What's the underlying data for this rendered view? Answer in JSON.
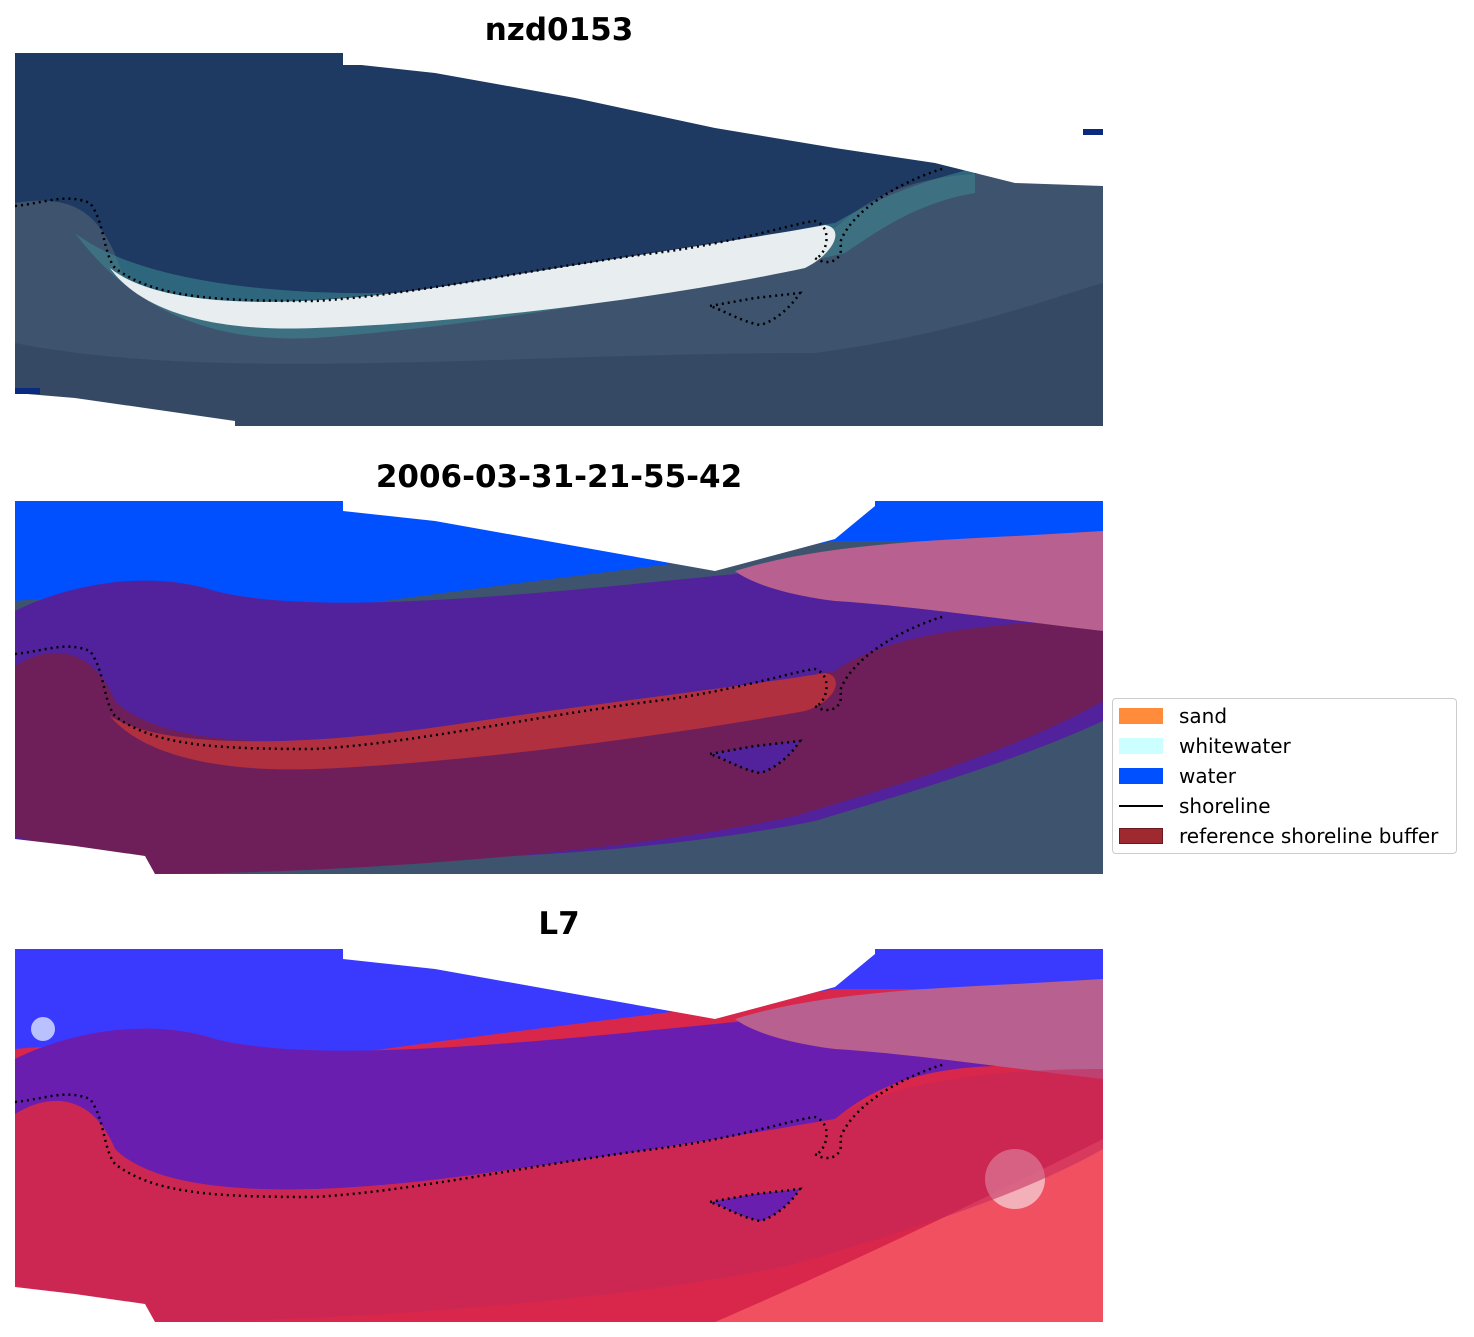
{
  "panels": [
    {
      "title": "nzd0153",
      "mode": "rgb"
    },
    {
      "title": "2006-03-31-21-55-42",
      "mode": "classified"
    },
    {
      "title": "L7",
      "mode": "mndwi"
    }
  ],
  "legend": {
    "items": [
      {
        "label": "sand",
        "type": "patch",
        "color": "#ff8c3a"
      },
      {
        "label": "whitewater",
        "type": "patch",
        "color": "#ccffff"
      },
      {
        "label": "water",
        "type": "patch",
        "color": "#0050ff"
      },
      {
        "label": "shoreline",
        "type": "line",
        "color": "#000000"
      },
      {
        "label": "reference shoreline buffer",
        "type": "patch",
        "color": "#9e2a2f"
      }
    ]
  },
  "colors": {
    "sea": "#1c3a66",
    "land": "#3c5070",
    "beach": "#dfe6ea",
    "water_class": "#0050ff",
    "buffer_overlay": "#5a1a7a",
    "sand_overlay": "#b03040",
    "mndwi_low": "#d8274a",
    "mndwi_high": "#3a3aff"
  }
}
